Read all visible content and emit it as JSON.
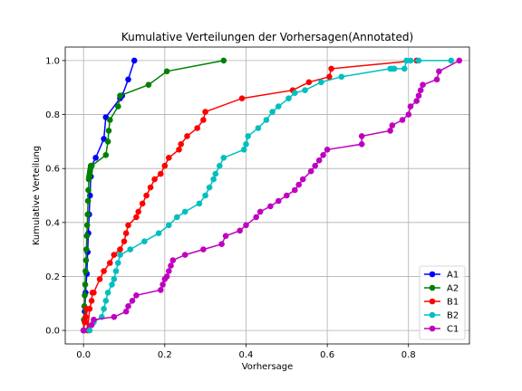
{
  "chart_data": {
    "type": "line",
    "title": "Kumulative Verteilungen der Vorhersagen(Annotated)",
    "xlabel": "Vorhersage",
    "ylabel": "Kumulative Verteilung",
    "xlim": [
      -0.045,
      0.95
    ],
    "ylim": [
      -0.05,
      1.05
    ],
    "xticks": [
      0.0,
      0.2,
      0.4,
      0.6,
      0.8
    ],
    "xtick_labels": [
      "0.0",
      "0.2",
      "0.4",
      "0.6",
      "0.8"
    ],
    "yticks": [
      0.0,
      0.2,
      0.4,
      0.6,
      0.8,
      1.0
    ],
    "ytick_labels": [
      "0.0",
      "0.2",
      "0.4",
      "0.6",
      "0.8",
      "1.0"
    ],
    "grid": true,
    "legend_position": "lower-right",
    "series": [
      {
        "name": "A1",
        "color": "#0000ff",
        "x": [
          0.0,
          0.003,
          0.005,
          0.008,
          0.01,
          0.012,
          0.014,
          0.016,
          0.018,
          0.02,
          0.03,
          0.05,
          0.055,
          0.09,
          0.095,
          0.11,
          0.125
        ],
        "y": [
          0.0,
          0.07,
          0.14,
          0.21,
          0.29,
          0.36,
          0.43,
          0.5,
          0.57,
          0.61,
          0.64,
          0.71,
          0.79,
          0.86,
          0.87,
          0.93,
          1.0
        ]
      },
      {
        "name": "A2",
        "color": "#008000",
        "x": [
          0.0,
          0.001,
          0.002,
          0.003,
          0.004,
          0.005,
          0.006,
          0.007,
          0.008,
          0.009,
          0.01,
          0.011,
          0.012,
          0.013,
          0.014,
          0.015,
          0.016,
          0.017,
          0.018,
          0.019,
          0.02,
          0.055,
          0.06,
          0.062,
          0.065,
          0.085,
          0.09,
          0.16,
          0.205,
          0.345
        ],
        "y": [
          0.0,
          0.04,
          0.09,
          0.13,
          0.17,
          0.22,
          0.26,
          0.3,
          0.35,
          0.39,
          0.43,
          0.48,
          0.52,
          0.56,
          0.57,
          0.58,
          0.59,
          0.6,
          0.61,
          0.61,
          0.61,
          0.65,
          0.7,
          0.74,
          0.78,
          0.83,
          0.87,
          0.91,
          0.96,
          1.0
        ]
      },
      {
        "name": "B1",
        "color": "#ff0000",
        "x": [
          0.0,
          0.003,
          0.005,
          0.007,
          0.01,
          0.015,
          0.02,
          0.022,
          0.025,
          0.04,
          0.05,
          0.065,
          0.075,
          0.09,
          0.1,
          0.105,
          0.11,
          0.13,
          0.135,
          0.145,
          0.155,
          0.165,
          0.175,
          0.19,
          0.2,
          0.21,
          0.235,
          0.24,
          0.255,
          0.28,
          0.295,
          0.3,
          0.39,
          0.515,
          0.555,
          0.605,
          0.61,
          0.82
        ],
        "y": [
          0.0,
          0.03,
          0.05,
          0.08,
          0.0,
          0.08,
          0.11,
          0.14,
          0.14,
          0.19,
          0.22,
          0.25,
          0.28,
          0.3,
          0.33,
          0.36,
          0.39,
          0.42,
          0.44,
          0.47,
          0.5,
          0.53,
          0.56,
          0.58,
          0.61,
          0.64,
          0.67,
          0.69,
          0.72,
          0.75,
          0.78,
          0.81,
          0.86,
          0.89,
          0.92,
          0.94,
          0.97,
          1.0
        ]
      },
      {
        "name": "B2",
        "color": "#00bfbf",
        "x": [
          0.0,
          0.015,
          0.025,
          0.045,
          0.05,
          0.055,
          0.06,
          0.07,
          0.075,
          0.08,
          0.085,
          0.09,
          0.115,
          0.15,
          0.185,
          0.21,
          0.23,
          0.25,
          0.285,
          0.3,
          0.31,
          0.32,
          0.325,
          0.335,
          0.345,
          0.395,
          0.4,
          0.405,
          0.43,
          0.45,
          0.465,
          0.48,
          0.505,
          0.52,
          0.545,
          0.585,
          0.635,
          0.755,
          0.76,
          0.765,
          0.79,
          0.795,
          0.805,
          0.825,
          0.905
        ],
        "y": [
          0.0,
          0.0,
          0.03,
          0.05,
          0.08,
          0.11,
          0.14,
          0.17,
          0.19,
          0.22,
          0.25,
          0.28,
          0.3,
          0.33,
          0.36,
          0.39,
          0.42,
          0.44,
          0.47,
          0.5,
          0.53,
          0.56,
          0.58,
          0.61,
          0.64,
          0.67,
          0.69,
          0.72,
          0.75,
          0.78,
          0.81,
          0.83,
          0.86,
          0.88,
          0.89,
          0.92,
          0.94,
          0.97,
          0.97,
          0.97,
          0.97,
          1.0,
          1.0,
          1.0,
          1.0
        ],
        "points_override": true
      },
      {
        "name": "C1",
        "color": "#bf00bf",
        "x": [
          0.0,
          0.02,
          0.025,
          0.075,
          0.105,
          0.11,
          0.12,
          0.13,
          0.19,
          0.195,
          0.2,
          0.205,
          0.21,
          0.215,
          0.22,
          0.25,
          0.295,
          0.34,
          0.35,
          0.385,
          0.4,
          0.425,
          0.435,
          0.46,
          0.48,
          0.5,
          0.52,
          0.53,
          0.54,
          0.56,
          0.57,
          0.58,
          0.59,
          0.6,
          0.685,
          0.685,
          0.755,
          0.76,
          0.785,
          0.8,
          0.805,
          0.82,
          0.825,
          0.83,
          0.835,
          0.87,
          0.875,
          0.925
        ],
        "y": [
          0.0,
          0.02,
          0.04,
          0.05,
          0.07,
          0.09,
          0.11,
          0.13,
          0.15,
          0.17,
          0.19,
          0.2,
          0.22,
          0.24,
          0.26,
          0.28,
          0.3,
          0.32,
          0.35,
          0.37,
          0.39,
          0.42,
          0.44,
          0.46,
          0.48,
          0.5,
          0.52,
          0.54,
          0.56,
          0.59,
          0.61,
          0.63,
          0.65,
          0.67,
          0.69,
          0.72,
          0.74,
          0.76,
          0.78,
          0.8,
          0.83,
          0.85,
          0.87,
          0.89,
          0.91,
          0.93,
          0.96,
          1.0
        ]
      }
    ]
  }
}
